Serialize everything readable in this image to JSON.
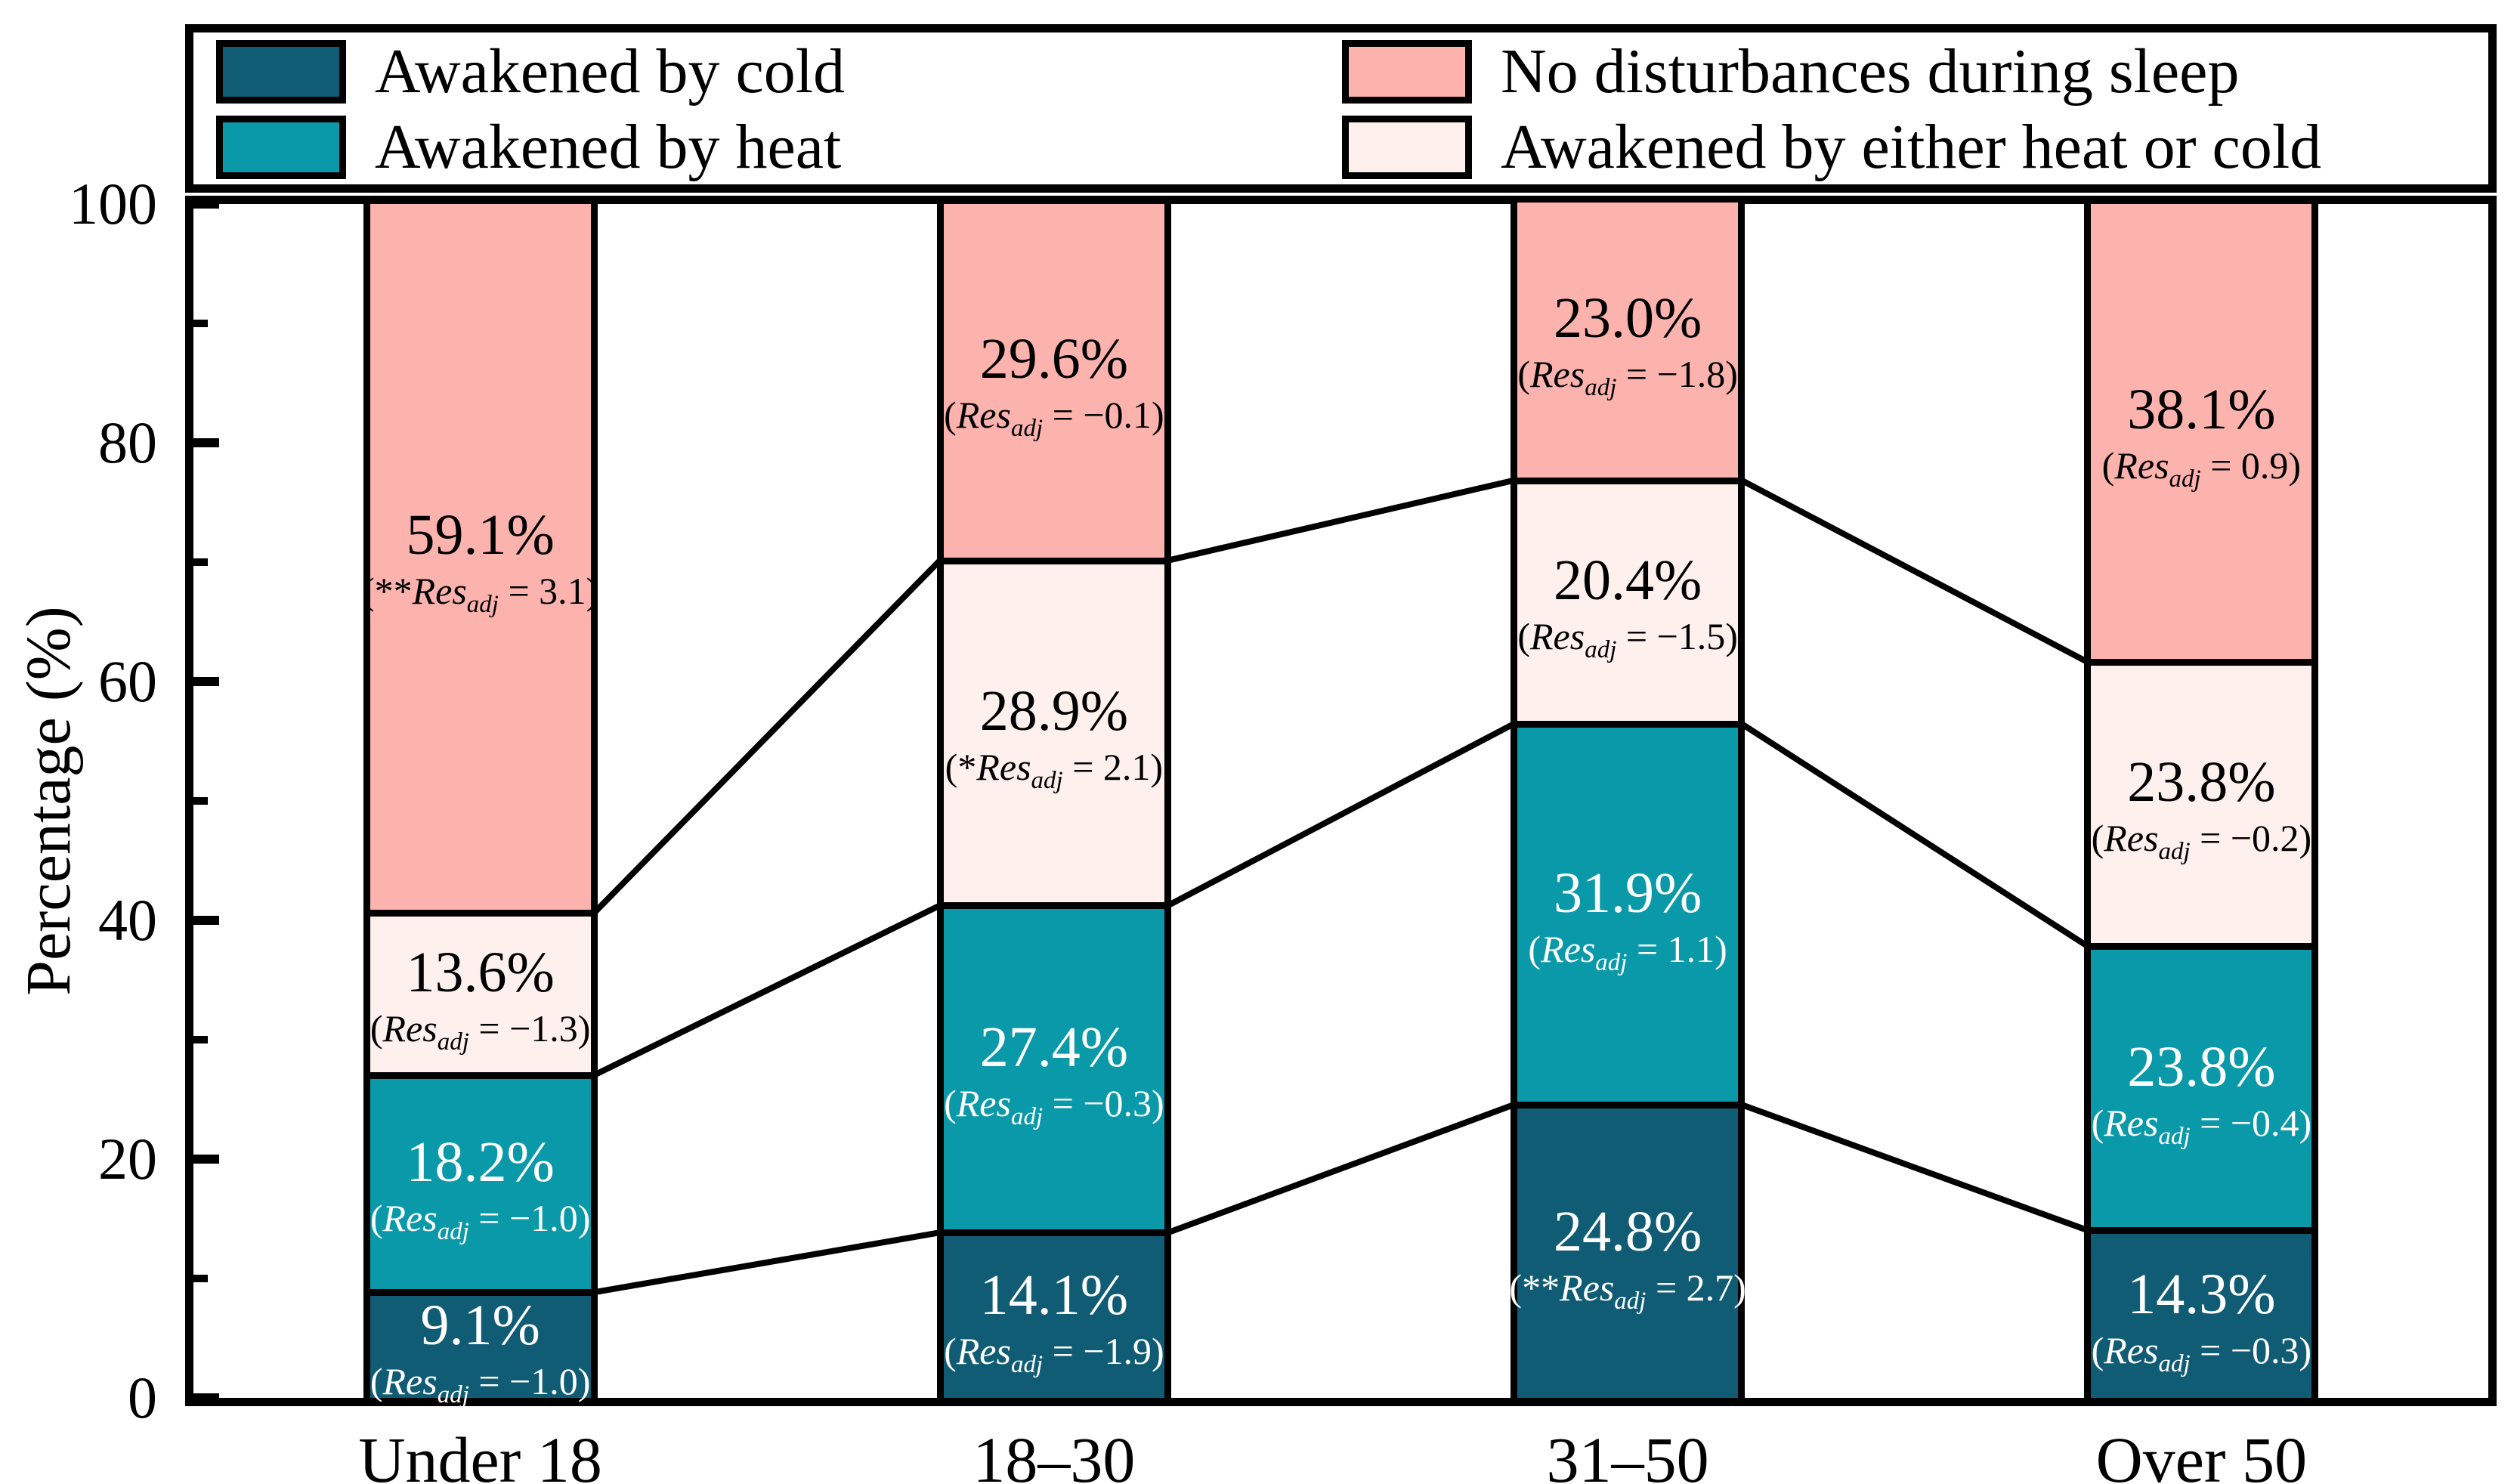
{
  "figure": {
    "background": "#FFFFFF",
    "frame_color": "#000000"
  },
  "legend": {
    "columns": [
      [
        {
          "label": "Awakened by cold",
          "color": "#115C75"
        },
        {
          "label": "Awakened by heat",
          "color": "#0999A8"
        }
      ],
      [
        {
          "label": "No disturbances during sleep",
          "color": "#FDB3AD"
        },
        {
          "label": "Awakened by either heat or cold",
          "color": "#FDF0ED"
        }
      ]
    ]
  },
  "axes": {
    "ylabel": "Percentage (%)",
    "ytick_labels": [
      "0",
      "20",
      "40",
      "60",
      "80",
      "100"
    ],
    "yticks_major": [
      0,
      20,
      40,
      60,
      80,
      100
    ],
    "yticks_minor": [
      10,
      30,
      50,
      70,
      90
    ],
    "xtick_labels": [
      "Under 18",
      "18–30",
      "31–50",
      "Over 50"
    ]
  },
  "chart_data": {
    "type": "bar",
    "stacked": true,
    "title": "",
    "xlabel": "",
    "ylabel": "Percentage (%)",
    "ylim": [
      0,
      100
    ],
    "grid": false,
    "legend_position": "top",
    "categories": [
      "Under 18",
      "18–30",
      "31–50",
      "Over 50"
    ],
    "series": [
      {
        "name": "Awakened by cold",
        "color": "#115C75",
        "label_color": "#FFFFFF",
        "values": [
          9.1,
          14.1,
          24.8,
          14.3
        ],
        "annotations": [
          {
            "pct": "9.1%",
            "stars": "",
            "res_adj": "−1.0"
          },
          {
            "pct": "14.1%",
            "stars": "",
            "res_adj": "−1.9"
          },
          {
            "pct": "24.8%",
            "stars": "**",
            "res_adj": "2.7"
          },
          {
            "pct": "14.3%",
            "stars": "",
            "res_adj": "−0.3"
          }
        ]
      },
      {
        "name": "Awakened by heat",
        "color": "#0999A8",
        "label_color": "#FFFFFF",
        "values": [
          18.2,
          27.4,
          31.9,
          23.8
        ],
        "annotations": [
          {
            "pct": "18.2%",
            "stars": "",
            "res_adj": "−1.0"
          },
          {
            "pct": "27.4%",
            "stars": "",
            "res_adj": "−0.3"
          },
          {
            "pct": "31.9%",
            "stars": "",
            "res_adj": "1.1"
          },
          {
            "pct": "23.8%",
            "stars": "",
            "res_adj": "−0.4"
          }
        ]
      },
      {
        "name": "Awakened by either heat or cold",
        "color": "#FDF0ED",
        "label_color": "#000000",
        "values": [
          13.6,
          28.9,
          20.4,
          23.8
        ],
        "annotations": [
          {
            "pct": "13.6%",
            "stars": "",
            "res_adj": "−1.3"
          },
          {
            "pct": "28.9%",
            "stars": "*",
            "res_adj": "2.1"
          },
          {
            "pct": "20.4%",
            "stars": "",
            "res_adj": "−1.5"
          },
          {
            "pct": "23.8%",
            "stars": "",
            "res_adj": "−0.2"
          }
        ]
      },
      {
        "name": "No disturbances during sleep",
        "color": "#FDB3AD",
        "label_color": "#000000",
        "values": [
          59.1,
          29.6,
          23.0,
          38.1
        ],
        "annotations": [
          {
            "pct": "59.1%",
            "stars": "**",
            "res_adj": "3.1"
          },
          {
            "pct": "29.6%",
            "stars": "",
            "res_adj": "−0.1"
          },
          {
            "pct": "23.0%",
            "stars": "",
            "res_adj": "−1.8"
          },
          {
            "pct": "38.1%",
            "stars": "",
            "res_adj": "0.9"
          }
        ]
      }
    ],
    "annotation_format": "(<stars>Res_adj = <value>)"
  }
}
